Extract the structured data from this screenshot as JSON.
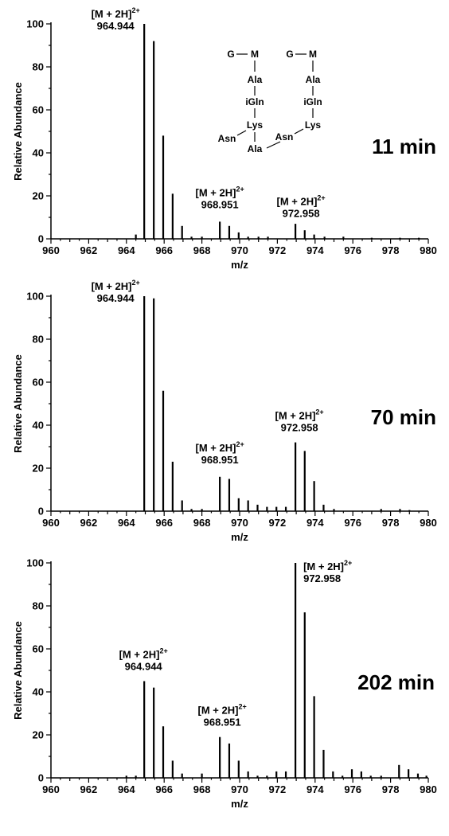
{
  "chart_data": [
    {
      "type": "bar",
      "panel": "top",
      "time_label": "11 min",
      "xlabel": "m/z",
      "ylabel": "Relative Abundance",
      "xlim": [
        960,
        980
      ],
      "ylim": [
        0,
        100
      ],
      "xticks": [
        "960",
        "962",
        "964",
        "966",
        "968",
        "970",
        "972",
        "974",
        "976",
        "978",
        "980"
      ],
      "yticks": [
        "0",
        "20",
        "40",
        "60",
        "80",
        "100"
      ],
      "series": [
        {
          "peaks": [
            {
              "mz": 964.5,
              "value": 2
            },
            {
              "mz": 964.944,
              "value": 100
            },
            {
              "mz": 965.45,
              "value": 92
            },
            {
              "mz": 965.95,
              "value": 48
            },
            {
              "mz": 966.45,
              "value": 21
            },
            {
              "mz": 966.95,
              "value": 6
            },
            {
              "mz": 967.45,
              "value": 1
            },
            {
              "mz": 968.0,
              "value": 1
            },
            {
              "mz": 968.951,
              "value": 8
            },
            {
              "mz": 969.45,
              "value": 6
            },
            {
              "mz": 969.95,
              "value": 3
            },
            {
              "mz": 970.45,
              "value": 1
            },
            {
              "mz": 971.0,
              "value": 1
            },
            {
              "mz": 971.5,
              "value": 1
            },
            {
              "mz": 972.958,
              "value": 7
            },
            {
              "mz": 973.45,
              "value": 4
            },
            {
              "mz": 973.95,
              "value": 2
            },
            {
              "mz": 974.5,
              "value": 1
            },
            {
              "mz": 975.5,
              "value": 1
            },
            {
              "mz": 977.0,
              "value": 0.5
            },
            {
              "mz": 978.5,
              "value": 0.5
            },
            {
              "mz": 979.5,
              "value": 0.5
            }
          ]
        }
      ],
      "annotations": [
        {
          "label": "[M + 2H]",
          "charge": "2+",
          "mz": "964.944",
          "at_mz": 964.944,
          "at_value": 100
        },
        {
          "label": "[M + 2H]",
          "charge": "2+",
          "mz": "968.951",
          "at_mz": 968.951,
          "at_value": 12
        },
        {
          "label": "[M + 2H]",
          "charge": "2+",
          "mz": "972.958",
          "at_mz": 972.958,
          "at_value": 8
        }
      ],
      "structure": {
        "left": {
          "g": "G",
          "m": "M",
          "ala": "Ala",
          "igln": "iGln",
          "lys": "Lys",
          "asn": "Asn",
          "ala2": "Ala"
        },
        "right": {
          "g": "G",
          "m": "M",
          "ala": "Ala",
          "igln": "iGln",
          "lys": "Lys",
          "asn": "Asn"
        }
      }
    },
    {
      "type": "bar",
      "panel": "middle",
      "time_label": "70 min",
      "xlabel": "m/z",
      "ylabel": "Relative Abundance",
      "xlim": [
        960,
        980
      ],
      "ylim": [
        0,
        100
      ],
      "xticks": [
        "960",
        "962",
        "964",
        "966",
        "968",
        "970",
        "972",
        "974",
        "976",
        "978",
        "980"
      ],
      "yticks": [
        "0",
        "20",
        "40",
        "60",
        "80",
        "100"
      ],
      "series": [
        {
          "peaks": [
            {
              "mz": 964.944,
              "value": 100
            },
            {
              "mz": 965.45,
              "value": 99
            },
            {
              "mz": 965.95,
              "value": 56
            },
            {
              "mz": 966.45,
              "value": 23
            },
            {
              "mz": 966.95,
              "value": 5
            },
            {
              "mz": 967.45,
              "value": 1
            },
            {
              "mz": 968.0,
              "value": 1
            },
            {
              "mz": 968.951,
              "value": 16
            },
            {
              "mz": 969.45,
              "value": 15
            },
            {
              "mz": 969.95,
              "value": 6
            },
            {
              "mz": 970.45,
              "value": 5
            },
            {
              "mz": 970.95,
              "value": 3
            },
            {
              "mz": 971.45,
              "value": 2
            },
            {
              "mz": 971.95,
              "value": 2
            },
            {
              "mz": 972.45,
              "value": 2
            },
            {
              "mz": 972.958,
              "value": 32
            },
            {
              "mz": 973.45,
              "value": 28
            },
            {
              "mz": 973.95,
              "value": 14
            },
            {
              "mz": 974.45,
              "value": 3
            },
            {
              "mz": 975.0,
              "value": 1
            },
            {
              "mz": 977.5,
              "value": 1
            },
            {
              "mz": 978.5,
              "value": 1
            },
            {
              "mz": 979.0,
              "value": 0.5
            }
          ]
        }
      ],
      "annotations": [
        {
          "label": "[M + 2H]",
          "charge": "2+",
          "mz": "964.944",
          "at_mz": 964.944,
          "at_value": 100
        },
        {
          "label": "[M + 2H]",
          "charge": "2+",
          "mz": "968.951",
          "at_mz": 968.951,
          "at_value": 20
        },
        {
          "label": "[M + 2H]",
          "charge": "2+",
          "mz": "972.958",
          "at_mz": 972.958,
          "at_value": 35
        }
      ]
    },
    {
      "type": "bar",
      "panel": "bottom",
      "time_label": "202 min",
      "xlabel": "m/z",
      "ylabel": "Relative Abundance",
      "xlim": [
        960,
        980
      ],
      "ylim": [
        0,
        100
      ],
      "xticks": [
        "960",
        "962",
        "964",
        "966",
        "968",
        "970",
        "972",
        "974",
        "976",
        "978",
        "980"
      ],
      "yticks": [
        "0",
        "20",
        "40",
        "60",
        "80",
        "100"
      ],
      "series": [
        {
          "peaks": [
            {
              "mz": 964.0,
              "value": 1
            },
            {
              "mz": 964.5,
              "value": 1
            },
            {
              "mz": 964.944,
              "value": 45
            },
            {
              "mz": 965.45,
              "value": 42
            },
            {
              "mz": 965.95,
              "value": 24
            },
            {
              "mz": 966.45,
              "value": 8
            },
            {
              "mz": 966.95,
              "value": 2
            },
            {
              "mz": 968.0,
              "value": 2
            },
            {
              "mz": 968.951,
              "value": 19
            },
            {
              "mz": 969.45,
              "value": 16
            },
            {
              "mz": 969.95,
              "value": 8
            },
            {
              "mz": 970.45,
              "value": 3
            },
            {
              "mz": 970.95,
              "value": 1
            },
            {
              "mz": 971.45,
              "value": 1
            },
            {
              "mz": 971.95,
              "value": 3
            },
            {
              "mz": 972.45,
              "value": 3
            },
            {
              "mz": 972.958,
              "value": 100
            },
            {
              "mz": 973.45,
              "value": 77
            },
            {
              "mz": 973.95,
              "value": 38
            },
            {
              "mz": 974.45,
              "value": 13
            },
            {
              "mz": 974.95,
              "value": 3
            },
            {
              "mz": 975.45,
              "value": 1
            },
            {
              "mz": 975.95,
              "value": 4
            },
            {
              "mz": 976.45,
              "value": 3
            },
            {
              "mz": 976.95,
              "value": 1
            },
            {
              "mz": 977.5,
              "value": 1
            },
            {
              "mz": 978.45,
              "value": 6
            },
            {
              "mz": 978.95,
              "value": 4
            },
            {
              "mz": 979.45,
              "value": 2
            },
            {
              "mz": 979.9,
              "value": 1
            }
          ]
        }
      ],
      "annotations": [
        {
          "label": "[M + 2H]",
          "charge": "2+",
          "mz": "964.944",
          "at_mz": 964.944,
          "at_value": 48
        },
        {
          "label": "[M + 2H]",
          "charge": "2+",
          "mz": "968.951",
          "at_mz": 968.951,
          "at_value": 22
        },
        {
          "label": "[M + 2H]",
          "charge": "2+",
          "mz": "972.958",
          "at_mz": 972.958,
          "at_value": 100
        }
      ]
    }
  ]
}
